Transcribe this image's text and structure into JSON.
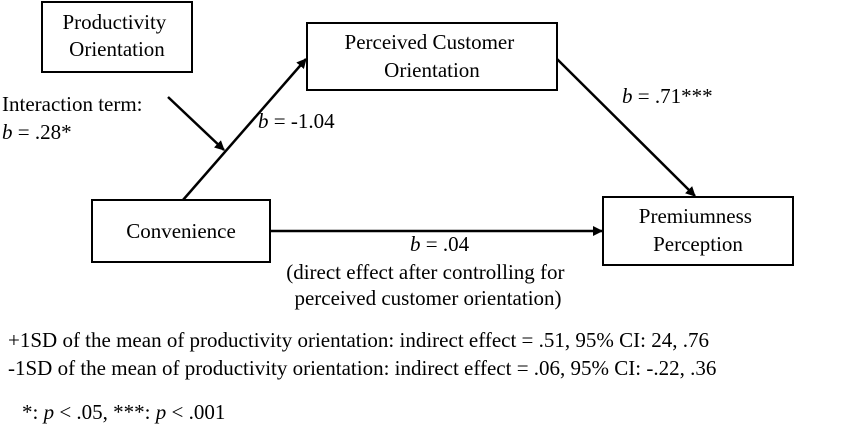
{
  "nodes": [
    {
      "lines": [
        "Productivity",
        "Orientation"
      ]
    },
    {
      "lines": [
        "Perceived Customer",
        "Orientation"
      ]
    },
    {
      "lines": [
        "Convenience"
      ]
    },
    {
      "lines": [
        "Premiumness",
        "Perception"
      ]
    }
  ],
  "interaction": {
    "title": "Interaction term:",
    "label": [
      {
        "text": "b",
        "italic": true
      },
      {
        "text": " = .28*"
      }
    ]
  },
  "edges": [
    {
      "label": [
        {
          "text": "b",
          "italic": true
        },
        {
          "text": " = -1.04"
        }
      ]
    },
    {
      "label": [
        {
          "text": "b",
          "italic": true
        },
        {
          "text": " = .71***"
        }
      ]
    },
    {
      "label": [
        {
          "text": "b",
          "italic": true
        },
        {
          "text": " = .04"
        }
      ],
      "note": [
        "(direct effect after controlling for",
        "perceived customer orientation)"
      ]
    }
  ],
  "notes": [
    "+1SD of the mean of productivity orientation: indirect effect = .51, 95% CI: 24, .76",
    "-1SD of the mean of productivity orientation: indirect effect = .06, 95% CI: -.22, .36"
  ],
  "footnote": [
    {
      "text": "*: "
    },
    {
      "text": "p",
      "italic": true
    },
    {
      "text": " < .05, ***: "
    },
    {
      "text": "p",
      "italic": true
    },
    {
      "text": " < .001"
    }
  ]
}
